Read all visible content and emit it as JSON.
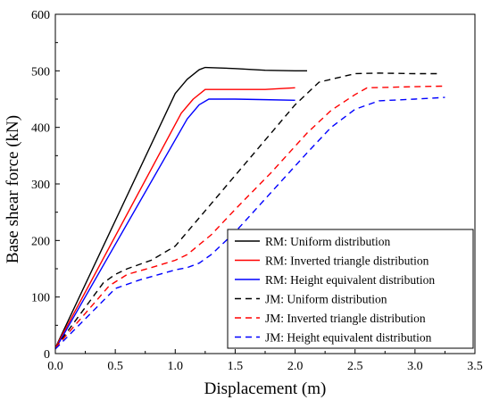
{
  "chart_data": {
    "type": "line",
    "xlabel": "Displacement (m)",
    "ylabel": "Base shear force (kN)",
    "xlim": [
      0,
      3.5
    ],
    "ylim": [
      0,
      600
    ],
    "xticks": [
      "0.0",
      "0.5",
      "1.0",
      "1.5",
      "2.0",
      "2.5",
      "3.0",
      "3.5"
    ],
    "yticks": [
      "0",
      "100",
      "200",
      "300",
      "400",
      "500",
      "600"
    ],
    "grid": false,
    "legend_position": "bottom-right",
    "series": [
      {
        "name": "RM: Uniform distribution",
        "color": "#000000",
        "dash": "solid",
        "points": [
          [
            0,
            10
          ],
          [
            1.0,
            460
          ],
          [
            1.1,
            485
          ],
          [
            1.2,
            502
          ],
          [
            1.25,
            506
          ],
          [
            1.5,
            504
          ],
          [
            1.75,
            501
          ],
          [
            2.0,
            500
          ],
          [
            2.1,
            500
          ]
        ]
      },
      {
        "name": "RM: Inverted triangle distribution",
        "color": "#ff0000",
        "dash": "solid",
        "points": [
          [
            0,
            10
          ],
          [
            1.05,
            425
          ],
          [
            1.15,
            450
          ],
          [
            1.25,
            467
          ],
          [
            1.5,
            467
          ],
          [
            1.75,
            467
          ],
          [
            2.0,
            470
          ]
        ]
      },
      {
        "name": "RM: Height equivalent distribution",
        "color": "#0000ff",
        "dash": "solid",
        "points": [
          [
            0,
            8
          ],
          [
            1.1,
            415
          ],
          [
            1.2,
            440
          ],
          [
            1.28,
            450
          ],
          [
            1.5,
            450
          ],
          [
            1.75,
            449
          ],
          [
            2.0,
            448
          ]
        ]
      },
      {
        "name": "JM: Uniform distribution",
        "color": "#000000",
        "dash": "dashed",
        "points": [
          [
            0,
            10
          ],
          [
            0.4,
            125
          ],
          [
            0.5,
            140
          ],
          [
            0.6,
            150
          ],
          [
            0.8,
            165
          ],
          [
            1.0,
            190
          ],
          [
            1.1,
            215
          ],
          [
            1.3,
            265
          ],
          [
            1.5,
            315
          ],
          [
            1.7,
            365
          ],
          [
            2.0,
            440
          ],
          [
            2.2,
            480
          ],
          [
            2.5,
            495
          ],
          [
            2.7,
            496
          ],
          [
            3.0,
            495
          ],
          [
            3.2,
            495
          ]
        ]
      },
      {
        "name": "JM: Inverted triangle distribution",
        "color": "#ff0000",
        "dash": "dashed",
        "points": [
          [
            0,
            10
          ],
          [
            0.45,
            120
          ],
          [
            0.6,
            140
          ],
          [
            0.8,
            152
          ],
          [
            1.0,
            165
          ],
          [
            1.1,
            175
          ],
          [
            1.3,
            210
          ],
          [
            1.5,
            255
          ],
          [
            1.8,
            320
          ],
          [
            2.1,
            390
          ],
          [
            2.3,
            430
          ],
          [
            2.5,
            458
          ],
          [
            2.6,
            470
          ],
          [
            3.0,
            472
          ],
          [
            3.25,
            473
          ]
        ]
      },
      {
        "name": "JM: Height equivalent distribution",
        "color": "#0000ff",
        "dash": "dashed",
        "points": [
          [
            0,
            8
          ],
          [
            0.5,
            115
          ],
          [
            0.7,
            130
          ],
          [
            1.0,
            148
          ],
          [
            1.1,
            152
          ],
          [
            1.2,
            160
          ],
          [
            1.3,
            175
          ],
          [
            1.5,
            215
          ],
          [
            1.8,
            285
          ],
          [
            2.1,
            355
          ],
          [
            2.3,
            400
          ],
          [
            2.5,
            432
          ],
          [
            2.7,
            447
          ],
          [
            3.0,
            450
          ],
          [
            3.25,
            453
          ]
        ]
      }
    ]
  }
}
